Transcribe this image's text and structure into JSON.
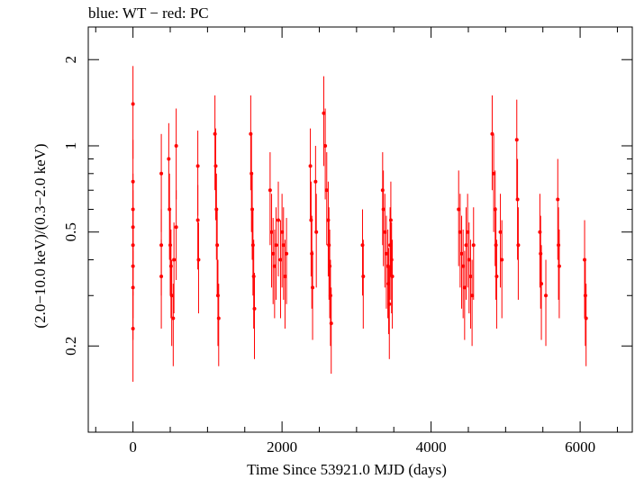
{
  "chart_data": {
    "type": "scatter",
    "title": "blue: WT − red: PC",
    "xlabel": "Time Since 53921.0 MJD (days)",
    "ylabel": "(2.0−10.0 keV)/(0.3−2.0 keV)",
    "xlim": [
      -600,
      6700
    ],
    "ylim": [
      0.1,
      2.6
    ],
    "yscale": "log",
    "grid": false,
    "xticks": [
      0,
      2000,
      4000,
      6000
    ],
    "xtick_labels": [
      "0",
      "2000",
      "4000",
      "6000"
    ],
    "yticks": [
      0.2,
      0.5,
      1,
      2
    ],
    "ytick_labels": [
      "0.2",
      "0.5",
      "1",
      "2"
    ],
    "series": [
      {
        "color": "#ff0000",
        "points": [
          [
            0,
            1.4,
            0.5
          ],
          [
            0,
            0.75,
            0.3
          ],
          [
            0,
            0.6,
            0.2
          ],
          [
            0,
            0.52,
            0.18
          ],
          [
            0,
            0.45,
            0.15
          ],
          [
            0,
            0.38,
            0.13
          ],
          [
            0,
            0.32,
            0.11
          ],
          [
            0,
            0.23,
            0.08
          ],
          [
            380,
            0.8,
            0.3
          ],
          [
            380,
            0.45,
            0.15
          ],
          [
            380,
            0.35,
            0.12
          ],
          [
            480,
            0.9,
            0.3
          ],
          [
            490,
            0.6,
            0.2
          ],
          [
            500,
            0.45,
            0.15
          ],
          [
            510,
            0.38,
            0.13
          ],
          [
            520,
            0.3,
            0.1
          ],
          [
            540,
            0.25,
            0.08
          ],
          [
            550,
            0.4,
            0.14
          ],
          [
            580,
            1.0,
            0.35
          ],
          [
            580,
            0.52,
            0.18
          ],
          [
            870,
            0.85,
            0.28
          ],
          [
            870,
            0.55,
            0.18
          ],
          [
            880,
            0.4,
            0.14
          ],
          [
            1100,
            1.1,
            0.4
          ],
          [
            1110,
            0.85,
            0.3
          ],
          [
            1120,
            0.6,
            0.2
          ],
          [
            1130,
            0.45,
            0.15
          ],
          [
            1140,
            0.3,
            0.1
          ],
          [
            1150,
            0.25,
            0.08
          ],
          [
            1580,
            1.1,
            0.4
          ],
          [
            1590,
            0.8,
            0.3
          ],
          [
            1600,
            0.6,
            0.2
          ],
          [
            1610,
            0.45,
            0.15
          ],
          [
            1620,
            0.35,
            0.12
          ],
          [
            1630,
            0.27,
            0.09
          ],
          [
            1840,
            0.7,
            0.25
          ],
          [
            1860,
            0.5,
            0.18
          ],
          [
            1880,
            0.42,
            0.14
          ],
          [
            1900,
            0.38,
            0.13
          ],
          [
            1920,
            0.45,
            0.16
          ],
          [
            1950,
            0.55,
            0.2
          ],
          [
            1980,
            0.4,
            0.15
          ],
          [
            2000,
            0.5,
            0.18
          ],
          [
            2020,
            0.45,
            0.16
          ],
          [
            2040,
            0.35,
            0.12
          ],
          [
            2060,
            0.42,
            0.14
          ],
          [
            2380,
            0.85,
            0.3
          ],
          [
            2390,
            0.55,
            0.2
          ],
          [
            2400,
            0.42,
            0.15
          ],
          [
            2410,
            0.32,
            0.11
          ],
          [
            2450,
            0.75,
            0.25
          ],
          [
            2460,
            0.5,
            0.18
          ],
          [
            2560,
            1.3,
            0.45
          ],
          [
            2580,
            1.0,
            0.35
          ],
          [
            2600,
            0.7,
            0.25
          ],
          [
            2620,
            0.55,
            0.2
          ],
          [
            2630,
            0.45,
            0.16
          ],
          [
            2640,
            0.38,
            0.13
          ],
          [
            2650,
            0.3,
            0.1
          ],
          [
            2660,
            0.24,
            0.08
          ],
          [
            3080,
            0.45,
            0.15
          ],
          [
            3090,
            0.35,
            0.12
          ],
          [
            3350,
            0.7,
            0.25
          ],
          [
            3360,
            0.6,
            0.22
          ],
          [
            3380,
            0.5,
            0.18
          ],
          [
            3400,
            0.42,
            0.15
          ],
          [
            3420,
            0.38,
            0.13
          ],
          [
            3430,
            0.33,
            0.11
          ],
          [
            3440,
            0.28,
            0.1
          ],
          [
            3450,
            0.45,
            0.16
          ],
          [
            3460,
            0.55,
            0.2
          ],
          [
            3470,
            0.4,
            0.14
          ],
          [
            3480,
            0.35,
            0.12
          ],
          [
            4370,
            0.6,
            0.22
          ],
          [
            4390,
            0.5,
            0.18
          ],
          [
            4410,
            0.42,
            0.15
          ],
          [
            4430,
            0.38,
            0.13
          ],
          [
            4450,
            0.32,
            0.11
          ],
          [
            4470,
            0.45,
            0.16
          ],
          [
            4490,
            0.5,
            0.18
          ],
          [
            4510,
            0.4,
            0.14
          ],
          [
            4530,
            0.35,
            0.12
          ],
          [
            4550,
            0.3,
            0.1
          ],
          [
            4570,
            0.45,
            0.16
          ],
          [
            4820,
            1.1,
            0.4
          ],
          [
            4840,
            0.8,
            0.3
          ],
          [
            4860,
            0.6,
            0.22
          ],
          [
            4870,
            0.45,
            0.16
          ],
          [
            4880,
            0.35,
            0.12
          ],
          [
            4930,
            0.5,
            0.18
          ],
          [
            4950,
            0.4,
            0.15
          ],
          [
            5150,
            1.05,
            0.4
          ],
          [
            5160,
            0.65,
            0.25
          ],
          [
            5170,
            0.45,
            0.16
          ],
          [
            5460,
            0.5,
            0.18
          ],
          [
            5470,
            0.42,
            0.15
          ],
          [
            5480,
            0.33,
            0.12
          ],
          [
            5540,
            0.3,
            0.1
          ],
          [
            5700,
            0.65,
            0.25
          ],
          [
            5710,
            0.45,
            0.16
          ],
          [
            5720,
            0.38,
            0.13
          ],
          [
            6060,
            0.4,
            0.15
          ],
          [
            6070,
            0.3,
            0.1
          ],
          [
            6080,
            0.25,
            0.08
          ]
        ]
      }
    ]
  }
}
